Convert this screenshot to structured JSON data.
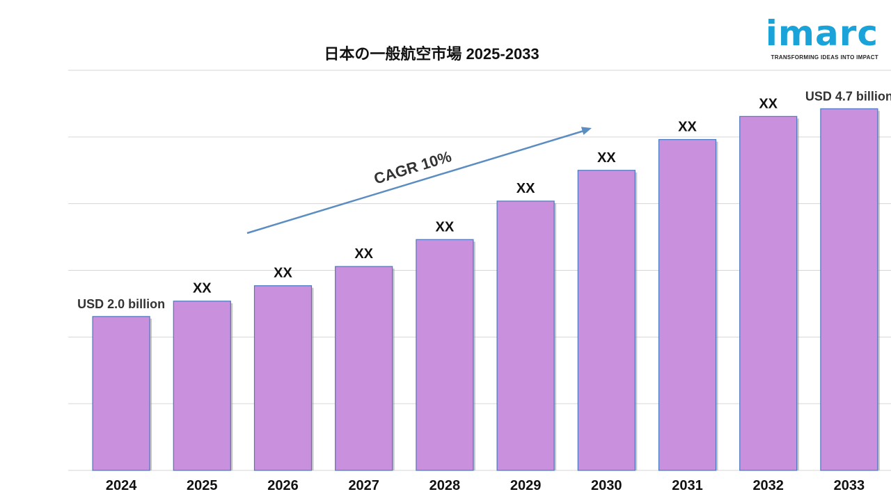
{
  "chart_data": {
    "type": "bar",
    "title": "日本の一般航空市場 2025-2033",
    "xlabel": "",
    "ylabel": "",
    "ylim": [
      0,
      5.2
    ],
    "grid": true,
    "categories": [
      "2024",
      "2025",
      "2026",
      "2027",
      "2028",
      "2029",
      "2030",
      "2031",
      "2032",
      "2033"
    ],
    "values": [
      2.0,
      2.2,
      2.4,
      2.65,
      3.0,
      3.5,
      3.9,
      4.3,
      4.6,
      4.7
    ],
    "data_labels": [
      "USD 2.0 billion",
      "XX",
      "XX",
      "XX",
      "XX",
      "XX",
      "XX",
      "XX",
      "XX",
      "USD 4.7 billion"
    ],
    "annotation": "CAGR  10%",
    "bar_color": "#c990dd",
    "bar_edge_color": "#4a78c0",
    "arrow_color": "#5b8dc0"
  },
  "logo": {
    "word": "imarc",
    "tagline": "TRANSFORMING IDEAS INTO IMPACT",
    "color": "#1aa3d8"
  }
}
